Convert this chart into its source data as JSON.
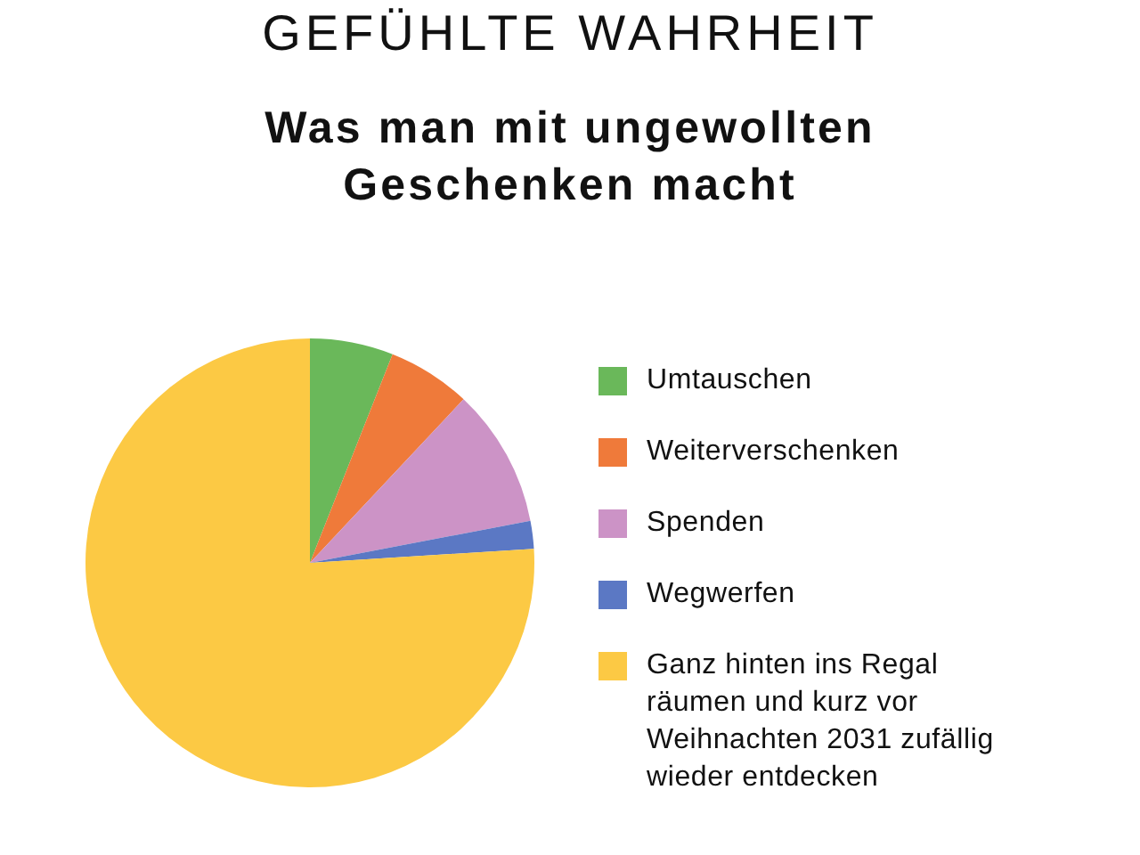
{
  "chart_data": {
    "type": "pie",
    "title": "GEFÜHLTE WAHRHEIT",
    "subtitle": "Was man mit ungewollten Geschenken macht",
    "categories": [
      "Umtauschen",
      "Weiterverschenken",
      "Spenden",
      "Wegwerfen",
      "Ganz hinten ins Regal räumen und kurz vor Weihnachten 2031 zufällig wieder entdecken"
    ],
    "values": [
      6,
      6,
      10,
      2,
      76
    ],
    "colors": [
      "#6ab85a",
      "#ef7a3a",
      "#cc93c6",
      "#5b78c4",
      "#fcc944"
    ],
    "legend": "right"
  }
}
